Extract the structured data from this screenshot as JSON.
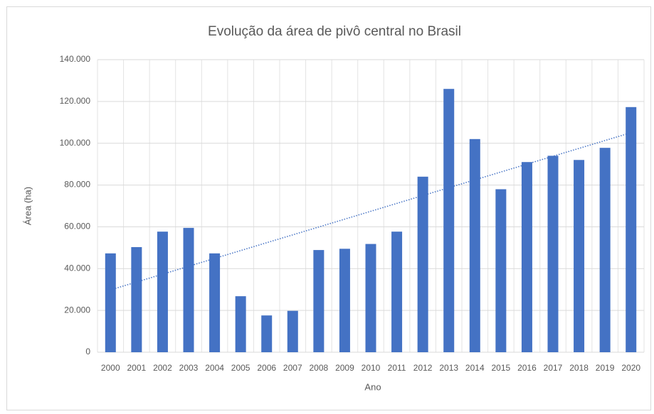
{
  "chart_data": {
    "type": "bar",
    "title": "Evolução da área de pivô central no Brasil",
    "x_label": "Ano",
    "y_label": "Área (ha)",
    "categories": [
      "2000",
      "2001",
      "2002",
      "2003",
      "2004",
      "2005",
      "2006",
      "2007",
      "2008",
      "2009",
      "2010",
      "2011",
      "2012",
      "2013",
      "2014",
      "2015",
      "2016",
      "2017",
      "2018",
      "2019",
      "2020"
    ],
    "values": [
      47300,
      50300,
      57700,
      59500,
      47300,
      26800,
      17600,
      19800,
      48900,
      49500,
      51800,
      57700,
      84000,
      126000,
      102000,
      78000,
      91000,
      94000,
      92000,
      97800,
      117300
    ],
    "color": "#4472c4",
    "ylim": [
      0,
      140000
    ],
    "yticks": [
      0,
      {
        "value": 20000,
        "label": "20.000"
      },
      {
        "value": 40000,
        "label": "40.000"
      },
      {
        "value": 60000,
        "label": "60.000"
      },
      {
        "value": 80000,
        "label": "80.000"
      },
      {
        "value": 100000,
        "label": "100.000"
      },
      {
        "value": 120000,
        "label": "120.000"
      },
      {
        "value": 140000,
        "label": "140.000"
      }
    ],
    "grid": true,
    "trendline": "linear"
  }
}
